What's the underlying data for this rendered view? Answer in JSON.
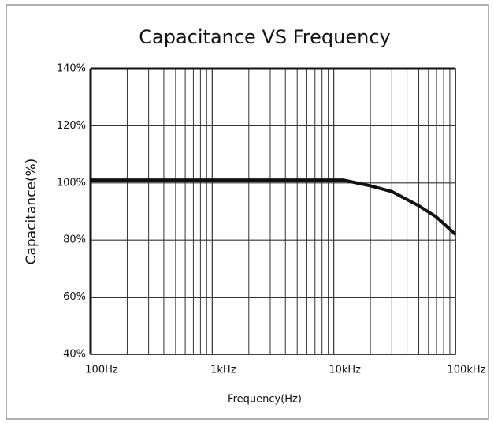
{
  "chart_data": {
    "type": "line",
    "title": "Capacitance VS Frequency",
    "x_label": "Frequency(Hz)",
    "y_label": "Capacitance(%)",
    "x_scale": "log",
    "grid": true,
    "xlim": [
      100,
      100000
    ],
    "xticks": [
      {
        "value": 100,
        "label": "100Hz"
      },
      {
        "value": 1000,
        "label": "1kHz"
      },
      {
        "value": 10000,
        "label": "10kHz"
      },
      {
        "value": 100000,
        "label": "100kHz"
      }
    ],
    "ylim": [
      40,
      140
    ],
    "yticks": [
      {
        "value": 40,
        "label": "40%"
      },
      {
        "value": 60,
        "label": "60%"
      },
      {
        "value": 80,
        "label": "80%"
      },
      {
        "value": 100,
        "label": "100%"
      },
      {
        "value": 120,
        "label": "120%"
      },
      {
        "value": 140,
        "label": "140%"
      }
    ],
    "series": [
      {
        "color": "#111111",
        "x": [
          100,
          1000,
          10000,
          12000,
          20000,
          30000,
          50000,
          70000,
          100000
        ],
        "values": [
          101,
          101,
          101,
          101,
          99,
          97,
          92,
          88,
          82
        ]
      }
    ]
  }
}
